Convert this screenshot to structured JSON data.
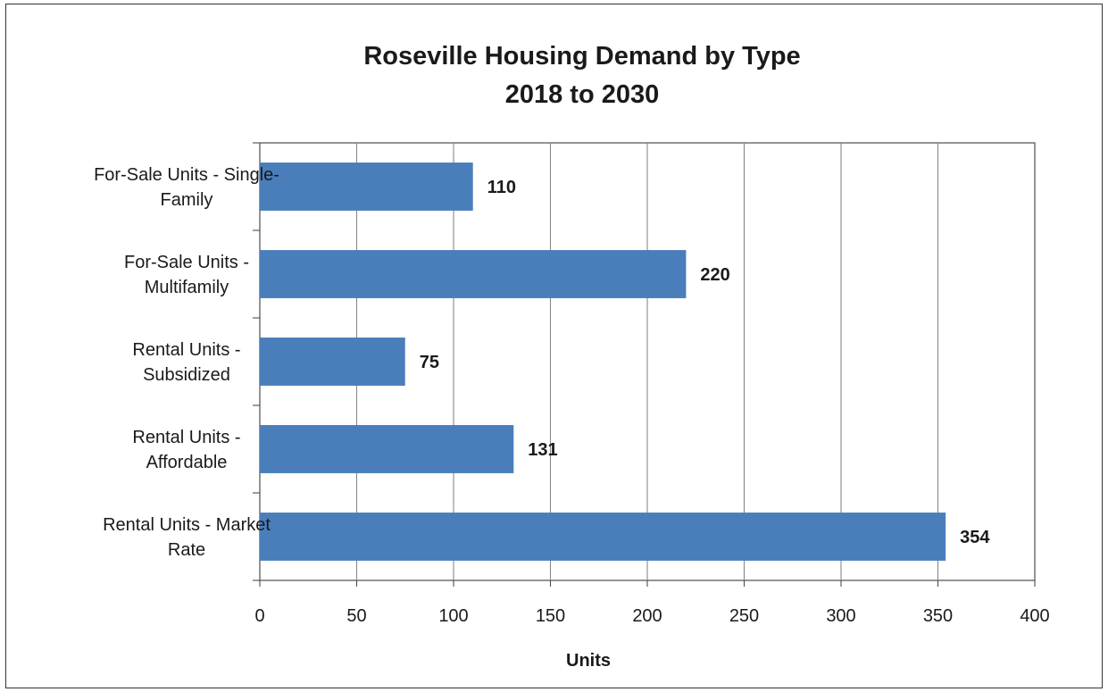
{
  "chart_data": {
    "type": "bar",
    "orientation": "horizontal",
    "title": [
      "Roseville Housing Demand by Type",
      "2018 to 2030"
    ],
    "xlabel": "Units",
    "ylabel": "",
    "categories": [
      [
        "For-Sale Units - Single-",
        "Family"
      ],
      [
        "For-Sale Units -",
        "Multifamily"
      ],
      [
        "Rental Units -",
        "Subsidized"
      ],
      [
        "Rental Units -",
        "Affordable"
      ],
      [
        "Rental Units - Market",
        "Rate"
      ]
    ],
    "values": [
      110,
      220,
      75,
      131,
      354
    ],
    "data_labels": [
      "110",
      "220",
      "75",
      "131",
      "354"
    ],
    "xlim": [
      0,
      400
    ],
    "x_ticks": [
      0,
      50,
      100,
      150,
      200,
      250,
      300,
      350,
      400
    ],
    "grid": "vertical",
    "legend": "none",
    "bar_color": "#4a7ebb"
  }
}
